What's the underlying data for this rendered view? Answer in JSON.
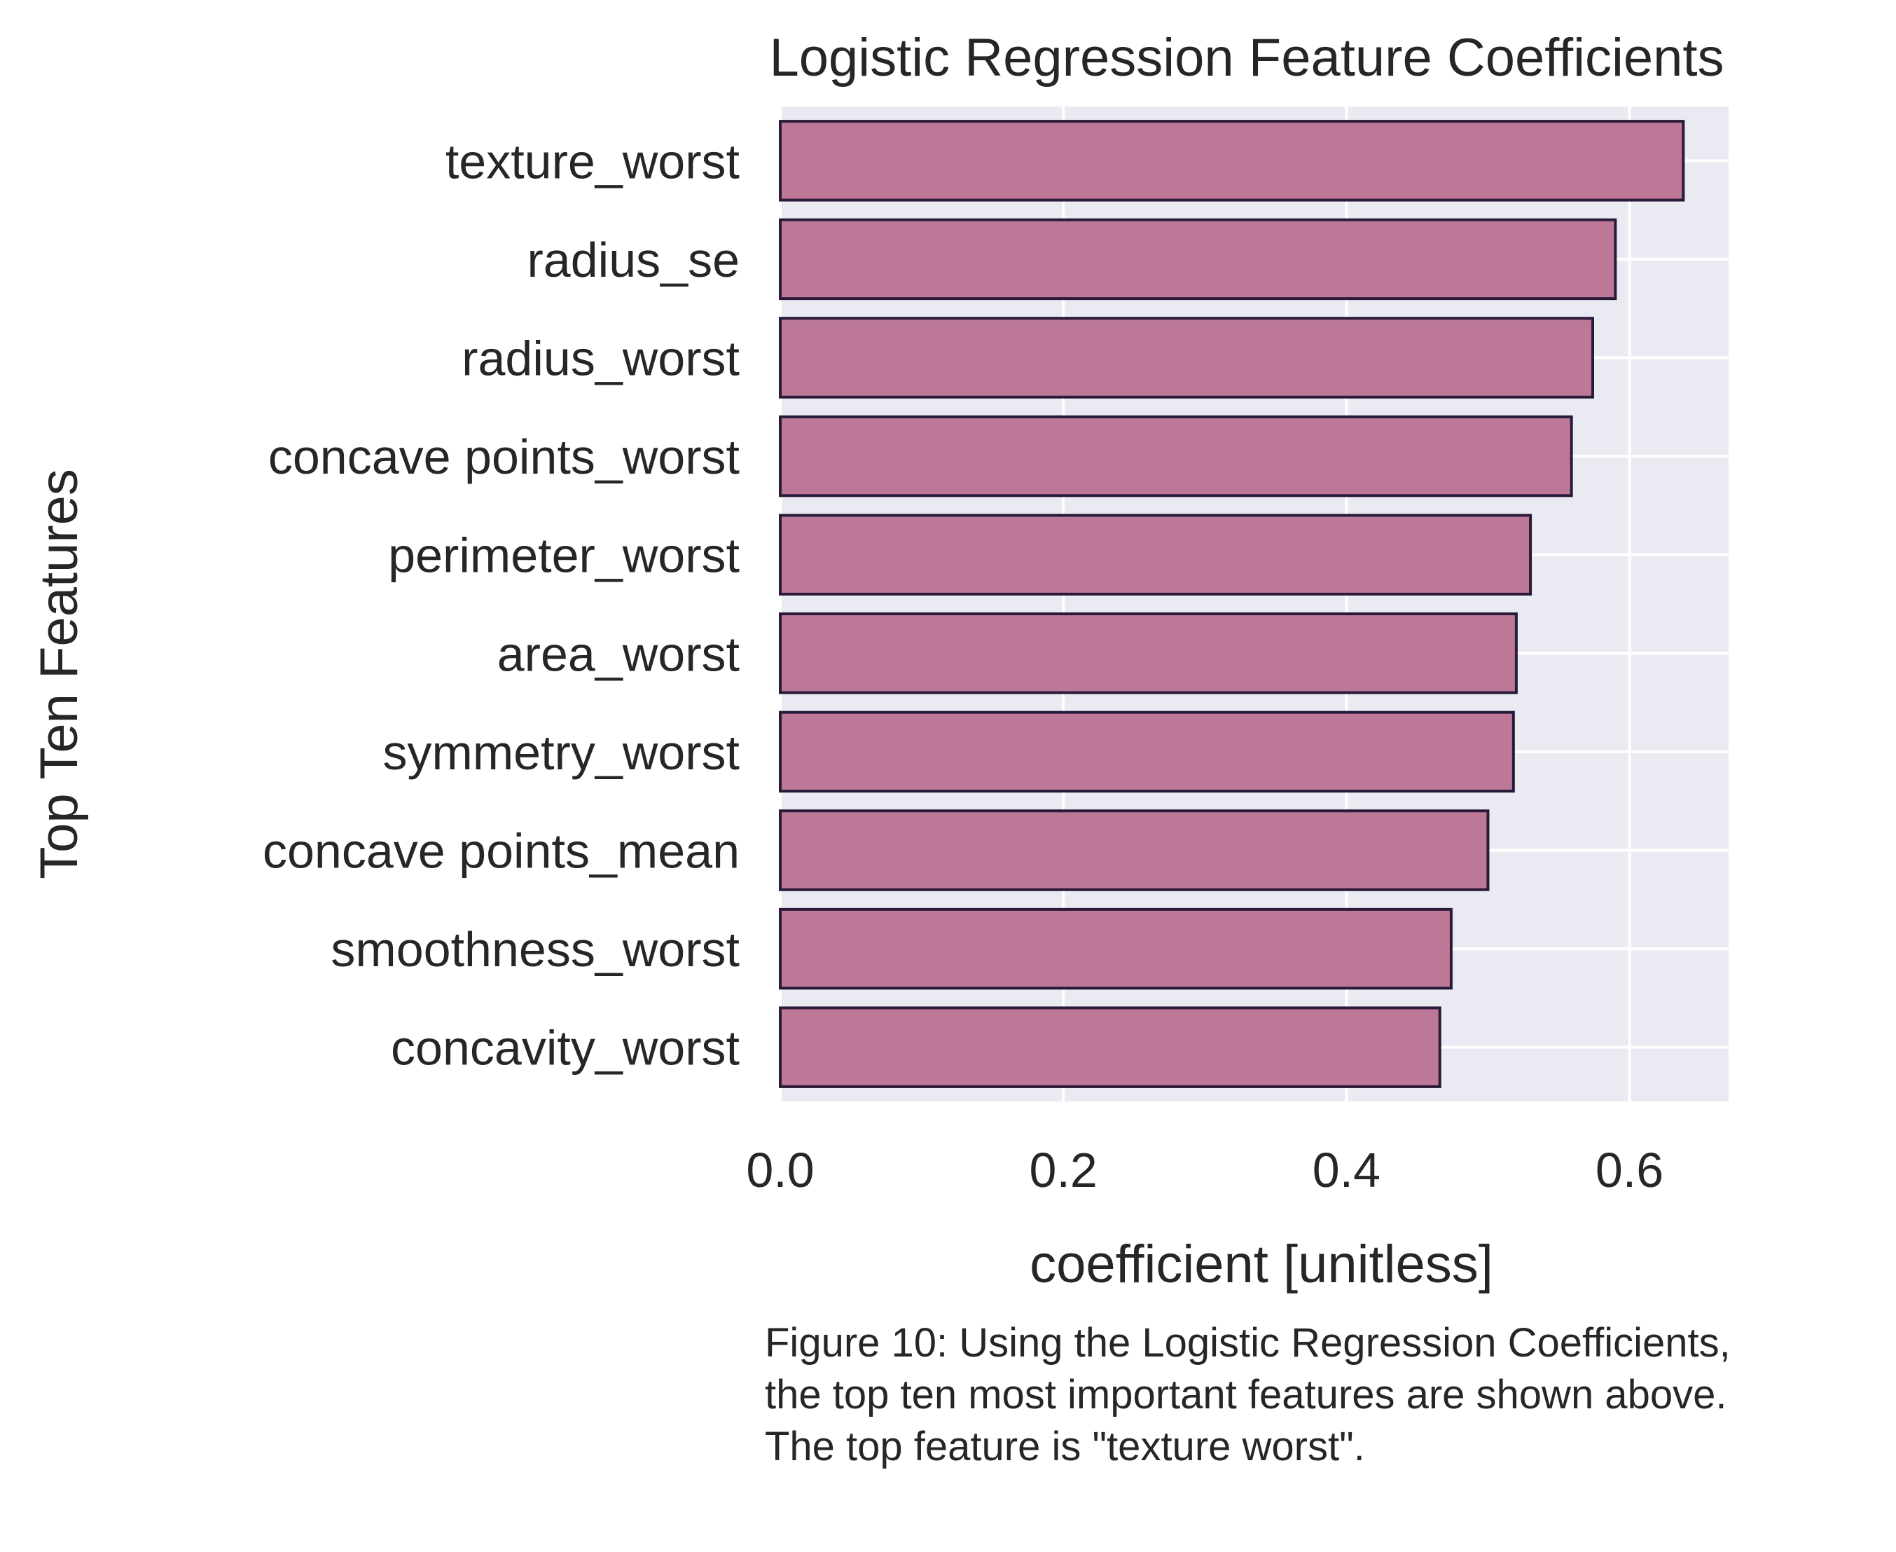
{
  "chart_data": {
    "type": "bar",
    "orientation": "horizontal",
    "title": "Logistic Regression Feature Coefficients",
    "xlabel": "coefficient [unitless]",
    "ylabel": "Top Ten Features",
    "categories": [
      "texture_worst",
      "radius_se",
      "radius_worst",
      "concave points_worst",
      "perimeter_worst",
      "area_worst",
      "symmetry_worst",
      "concave points_mean",
      "smoothness_worst",
      "concavity_worst"
    ],
    "values": [
      0.638,
      0.59,
      0.574,
      0.559,
      0.53,
      0.52,
      0.518,
      0.5,
      0.474,
      0.466
    ],
    "xlim": [
      0.0,
      0.67
    ],
    "xticks": [
      0.0,
      0.2,
      0.4,
      0.6
    ],
    "xtick_labels": [
      "0.0",
      "0.2",
      "0.4",
      "0.6"
    ],
    "grid": true,
    "colors": {
      "bar_fill": "#bd7897",
      "bar_edge": "#2a1a3a",
      "plot_background": "#eaeaf2",
      "grid": "#ffffff"
    }
  },
  "caption": "Figure 10: Using the Logistic Regression Coefficients, the top ten most important features are shown above. The top feature is \"texture worst\"."
}
